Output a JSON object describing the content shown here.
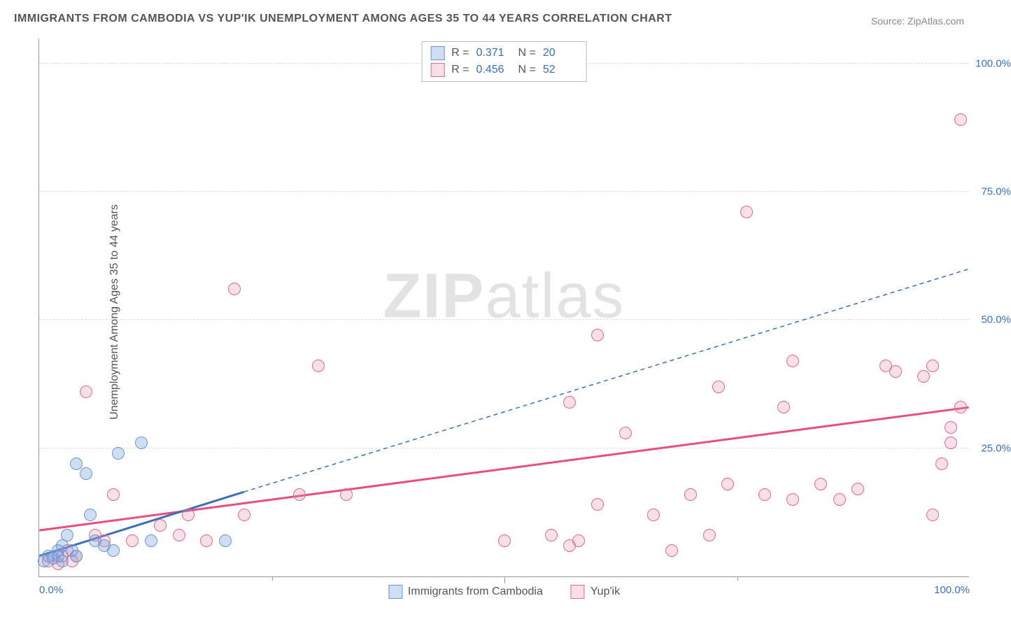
{
  "title": "IMMIGRANTS FROM CAMBODIA VS YUP'IK UNEMPLOYMENT AMONG AGES 35 TO 44 YEARS CORRELATION CHART",
  "source": "Source: ZipAtlas.com",
  "ylabel": "Unemployment Among Ages 35 to 44 years",
  "watermark_a": "ZIP",
  "watermark_b": "atlas",
  "chart": {
    "type": "scatter",
    "xlim": [
      0,
      100
    ],
    "ylim": [
      0,
      105
    ],
    "xticks": [
      0,
      50,
      100
    ],
    "xtick_labels": [
      "0.0%",
      "",
      "100.0%"
    ],
    "yticks": [
      25,
      50,
      75,
      100
    ],
    "ytick_labels": [
      "25.0%",
      "50.0%",
      "75.0%",
      "100.0%"
    ],
    "vticks_minor": [
      25,
      50,
      75
    ],
    "background_color": "#ffffff",
    "grid_color": "#dcdcdc",
    "axis_color": "#999999",
    "tick_label_color": "#3b6fb6",
    "text_color": "#555555",
    "point_radius": 9
  },
  "series": {
    "cambodia": {
      "label": "Immigrants from Cambodia",
      "fill": "rgba(120,160,220,0.35)",
      "stroke": "#6a95d6",
      "line_color": "#3b6fb6",
      "R": "0.371",
      "N": "20",
      "trend": {
        "x1": 0,
        "y1": 4,
        "x2_solid": 22,
        "y2_solid": 16.5,
        "x2_dash": 100,
        "y2_dash": 60
      },
      "points": [
        [
          0.5,
          3
        ],
        [
          1,
          4
        ],
        [
          1.5,
          3.5
        ],
        [
          2,
          5
        ],
        [
          2,
          4
        ],
        [
          2.5,
          3
        ],
        [
          2.5,
          6
        ],
        [
          3,
          8
        ],
        [
          3.5,
          5
        ],
        [
          4,
          4
        ],
        [
          4,
          22
        ],
        [
          5,
          20
        ],
        [
          5.5,
          12
        ],
        [
          6,
          7
        ],
        [
          7,
          6
        ],
        [
          8,
          5
        ],
        [
          8.5,
          24
        ],
        [
          11,
          26
        ],
        [
          12,
          7
        ],
        [
          20,
          7
        ]
      ]
    },
    "yupik": {
      "label": "Yup'ik",
      "fill": "rgba(235,140,165,0.28)",
      "stroke": "#e06a8e",
      "line_color": "#e84f7e",
      "R": "0.456",
      "N": "52",
      "trend": {
        "x1": 0,
        "y1": 9,
        "x2_solid": 100,
        "y2_solid": 33,
        "x2_dash": 100,
        "y2_dash": 33
      },
      "points": [
        [
          1,
          3
        ],
        [
          2,
          2.5
        ],
        [
          2.5,
          4
        ],
        [
          3,
          5
        ],
        [
          3.5,
          3
        ],
        [
          4,
          4
        ],
        [
          5,
          36
        ],
        [
          6,
          8
        ],
        [
          7,
          7
        ],
        [
          8,
          16
        ],
        [
          10,
          7
        ],
        [
          13,
          10
        ],
        [
          15,
          8
        ],
        [
          16,
          12
        ],
        [
          18,
          7
        ],
        [
          21,
          56
        ],
        [
          22,
          12
        ],
        [
          28,
          16
        ],
        [
          30,
          41
        ],
        [
          33,
          16
        ],
        [
          50,
          7
        ],
        [
          55,
          8
        ],
        [
          57,
          6
        ],
        [
          57,
          34
        ],
        [
          58,
          7
        ],
        [
          60,
          14
        ],
        [
          60,
          47
        ],
        [
          63,
          28
        ],
        [
          66,
          12
        ],
        [
          68,
          5
        ],
        [
          70,
          16
        ],
        [
          72,
          8
        ],
        [
          73,
          37
        ],
        [
          74,
          18
        ],
        [
          76,
          71
        ],
        [
          78,
          16
        ],
        [
          80,
          33
        ],
        [
          81,
          42
        ],
        [
          81,
          15
        ],
        [
          84,
          18
        ],
        [
          86,
          15
        ],
        [
          88,
          17
        ],
        [
          91,
          41
        ],
        [
          92,
          40
        ],
        [
          95,
          39
        ],
        [
          96,
          12
        ],
        [
          96,
          41
        ],
        [
          97,
          22
        ],
        [
          98,
          26
        ],
        [
          98,
          29
        ],
        [
          99,
          33
        ],
        [
          99,
          89
        ]
      ]
    }
  }
}
